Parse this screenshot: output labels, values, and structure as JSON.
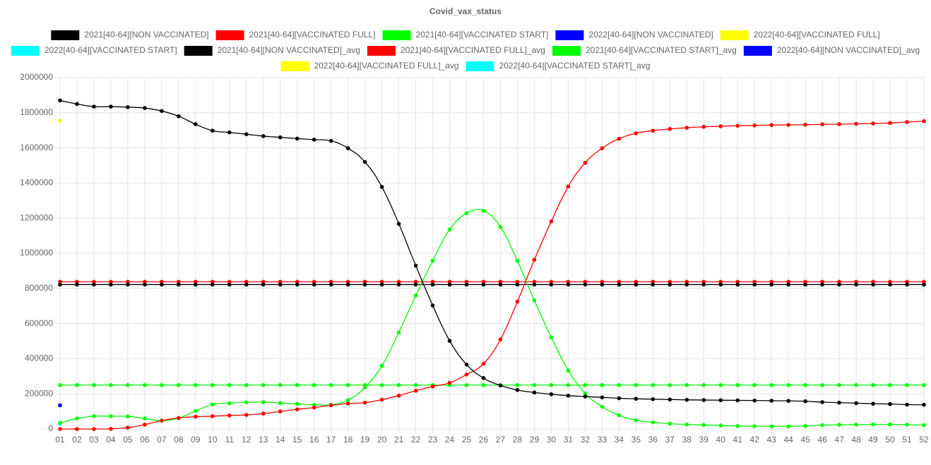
{
  "chart_data": {
    "type": "line",
    "title": "Covid_vax_status",
    "categories": [
      "01",
      "02",
      "03",
      "04",
      "05",
      "06",
      "07",
      "08",
      "09",
      "10",
      "11",
      "12",
      "13",
      "14",
      "15",
      "16",
      "17",
      "18",
      "19",
      "20",
      "21",
      "22",
      "23",
      "24",
      "25",
      "26",
      "27",
      "28",
      "29",
      "30",
      "31",
      "32",
      "33",
      "34",
      "35",
      "36",
      "37",
      "38",
      "39",
      "40",
      "41",
      "42",
      "43",
      "44",
      "45",
      "46",
      "47",
      "48",
      "49",
      "50",
      "51",
      "52"
    ],
    "ylim": [
      0,
      2000000
    ],
    "yticks": [
      0,
      200000,
      400000,
      600000,
      800000,
      1000000,
      1200000,
      1400000,
      1600000,
      1800000,
      2000000
    ],
    "grid": true,
    "series": [
      {
        "name": "2021[40-64][NON VACCINATED]",
        "color": "#000000",
        "values": [
          1870000,
          1850000,
          1835000,
          1835000,
          1832000,
          1827000,
          1810000,
          1780000,
          1735000,
          1698000,
          1688000,
          1678000,
          1667000,
          1660000,
          1653000,
          1647000,
          1640000,
          1598000,
          1520000,
          1378000,
          1168000,
          930000,
          703000,
          502000,
          367000,
          290000,
          248000,
          222000,
          208000,
          198000,
          190000,
          185000,
          180000,
          175000,
          172000,
          170000,
          168000,
          166000,
          165000,
          164000,
          163000,
          162000,
          161000,
          160000,
          158000,
          153000,
          150000,
          147000,
          144000,
          142000,
          139000,
          138000
        ]
      },
      {
        "name": "2021[40-64][VACCINATED FULL]",
        "color": "#ff0000",
        "values": [
          0,
          0,
          0,
          1000,
          8000,
          25000,
          48000,
          63000,
          70000,
          73000,
          77000,
          80000,
          88000,
          100000,
          112000,
          122000,
          135000,
          145000,
          150000,
          167000,
          190000,
          218000,
          242000,
          263000,
          310000,
          372000,
          510000,
          725000,
          963000,
          1182000,
          1380000,
          1515000,
          1598000,
          1652000,
          1683000,
          1698000,
          1708000,
          1715000,
          1720000,
          1723000,
          1726000,
          1728000,
          1730000,
          1731000,
          1732000,
          1734000,
          1735000,
          1737000,
          1739000,
          1742000,
          1747000,
          1752000
        ]
      },
      {
        "name": "2021[40-64][VACCINATED START]",
        "color": "#00ff00",
        "values": [
          35000,
          60000,
          73000,
          73000,
          72000,
          60000,
          48000,
          62000,
          103000,
          140000,
          147000,
          152000,
          153000,
          148000,
          143000,
          138000,
          138000,
          165000,
          237000,
          360000,
          550000,
          760000,
          958000,
          1135000,
          1228000,
          1242000,
          1150000,
          957000,
          732000,
          522000,
          333000,
          203000,
          127000,
          78000,
          50000,
          38000,
          30000,
          26000,
          23000,
          20000,
          17000,
          16000,
          15000,
          15000,
          17000,
          22000,
          24000,
          25000,
          26000,
          26000,
          25000,
          22000
        ]
      },
      {
        "name": "2022[40-64][NON VACCINATED]",
        "color": "#0000ff",
        "values": [
          135000,
          null,
          null,
          null,
          null,
          null,
          null,
          null,
          null,
          null,
          null,
          null,
          null,
          null,
          null,
          null,
          null,
          null,
          null,
          null,
          null,
          null,
          null,
          null,
          null,
          null,
          null,
          null,
          null,
          null,
          null,
          null,
          null,
          null,
          null,
          null,
          null,
          null,
          null,
          null,
          null,
          null,
          null,
          null,
          null,
          null,
          null,
          null,
          null,
          null,
          null,
          null
        ]
      },
      {
        "name": "2022[40-64][VACCINATED FULL]",
        "color": "#ffff00",
        "values": [
          1755000,
          null,
          null,
          null,
          null,
          null,
          null,
          null,
          null,
          null,
          null,
          null,
          null,
          null,
          null,
          null,
          null,
          null,
          null,
          null,
          null,
          null,
          null,
          null,
          null,
          null,
          null,
          null,
          null,
          null,
          null,
          null,
          null,
          null,
          null,
          null,
          null,
          null,
          null,
          null,
          null,
          null,
          null,
          null,
          null,
          null,
          null,
          null,
          null,
          null,
          null,
          null
        ]
      },
      {
        "name": "2022[40-64][VACCINATED START]",
        "color": "#00ffff",
        "values": [
          30000,
          null,
          null,
          null,
          null,
          null,
          null,
          null,
          null,
          null,
          null,
          null,
          null,
          null,
          null,
          null,
          null,
          null,
          null,
          null,
          null,
          null,
          null,
          null,
          null,
          null,
          null,
          null,
          null,
          null,
          null,
          null,
          null,
          null,
          null,
          null,
          null,
          null,
          null,
          null,
          null,
          null,
          null,
          null,
          null,
          null,
          null,
          null,
          null,
          null,
          null,
          null
        ]
      },
      {
        "name": "2021[40-64][NON VACCINATED]_avg",
        "color": "#000000",
        "values": [
          822000,
          822000,
          822000,
          822000,
          822000,
          822000,
          822000,
          822000,
          822000,
          822000,
          822000,
          822000,
          822000,
          822000,
          822000,
          822000,
          822000,
          822000,
          822000,
          822000,
          822000,
          822000,
          822000,
          822000,
          822000,
          822000,
          822000,
          822000,
          822000,
          822000,
          822000,
          822000,
          822000,
          822000,
          822000,
          822000,
          822000,
          822000,
          822000,
          822000,
          822000,
          822000,
          822000,
          822000,
          822000,
          822000,
          822000,
          822000,
          822000,
          822000,
          822000,
          822000
        ]
      },
      {
        "name": "2021[40-64][VACCINATED FULL]_avg",
        "color": "#ff0000",
        "values": [
          838000,
          838000,
          838000,
          838000,
          838000,
          838000,
          838000,
          838000,
          838000,
          838000,
          838000,
          838000,
          838000,
          838000,
          838000,
          838000,
          838000,
          838000,
          838000,
          838000,
          838000,
          838000,
          838000,
          838000,
          838000,
          838000,
          838000,
          838000,
          838000,
          838000,
          838000,
          838000,
          838000,
          838000,
          838000,
          838000,
          838000,
          838000,
          838000,
          838000,
          838000,
          838000,
          838000,
          838000,
          838000,
          838000,
          838000,
          838000,
          838000,
          838000,
          838000,
          838000
        ]
      },
      {
        "name": "2021[40-64][VACCINATED START]_avg",
        "color": "#00ff00",
        "values": [
          250000,
          250000,
          250000,
          250000,
          250000,
          250000,
          250000,
          250000,
          250000,
          250000,
          250000,
          250000,
          250000,
          250000,
          250000,
          250000,
          250000,
          250000,
          250000,
          250000,
          250000,
          250000,
          250000,
          250000,
          250000,
          250000,
          250000,
          250000,
          250000,
          250000,
          250000,
          250000,
          250000,
          250000,
          250000,
          250000,
          250000,
          250000,
          250000,
          250000,
          250000,
          250000,
          250000,
          250000,
          250000,
          250000,
          250000,
          250000,
          250000,
          250000,
          250000,
          250000
        ]
      },
      {
        "name": "2022[40-64][NON VACCINATED]_avg",
        "color": "#0000ff",
        "values": [
          135000,
          null,
          null,
          null,
          null,
          null,
          null,
          null,
          null,
          null,
          null,
          null,
          null,
          null,
          null,
          null,
          null,
          null,
          null,
          null,
          null,
          null,
          null,
          null,
          null,
          null,
          null,
          null,
          null,
          null,
          null,
          null,
          null,
          null,
          null,
          null,
          null,
          null,
          null,
          null,
          null,
          null,
          null,
          null,
          null,
          null,
          null,
          null,
          null,
          null,
          null,
          null
        ]
      },
      {
        "name": "2022[40-64][VACCINATED FULL]_avg",
        "color": "#ffff00",
        "values": [
          1755000,
          null,
          null,
          null,
          null,
          null,
          null,
          null,
          null,
          null,
          null,
          null,
          null,
          null,
          null,
          null,
          null,
          null,
          null,
          null,
          null,
          null,
          null,
          null,
          null,
          null,
          null,
          null,
          null,
          null,
          null,
          null,
          null,
          null,
          null,
          null,
          null,
          null,
          null,
          null,
          null,
          null,
          null,
          null,
          null,
          null,
          null,
          null,
          null,
          null,
          null,
          null
        ]
      },
      {
        "name": "2022[40-64][VACCINATED START]_avg",
        "color": "#00ffff",
        "values": [
          30000,
          null,
          null,
          null,
          null,
          null,
          null,
          null,
          null,
          null,
          null,
          null,
          null,
          null,
          null,
          null,
          null,
          null,
          null,
          null,
          null,
          null,
          null,
          null,
          null,
          null,
          null,
          null,
          null,
          null,
          null,
          null,
          null,
          null,
          null,
          null,
          null,
          null,
          null,
          null,
          null,
          null,
          null,
          null,
          null,
          null,
          null,
          null,
          null,
          null,
          null,
          null
        ]
      }
    ]
  }
}
